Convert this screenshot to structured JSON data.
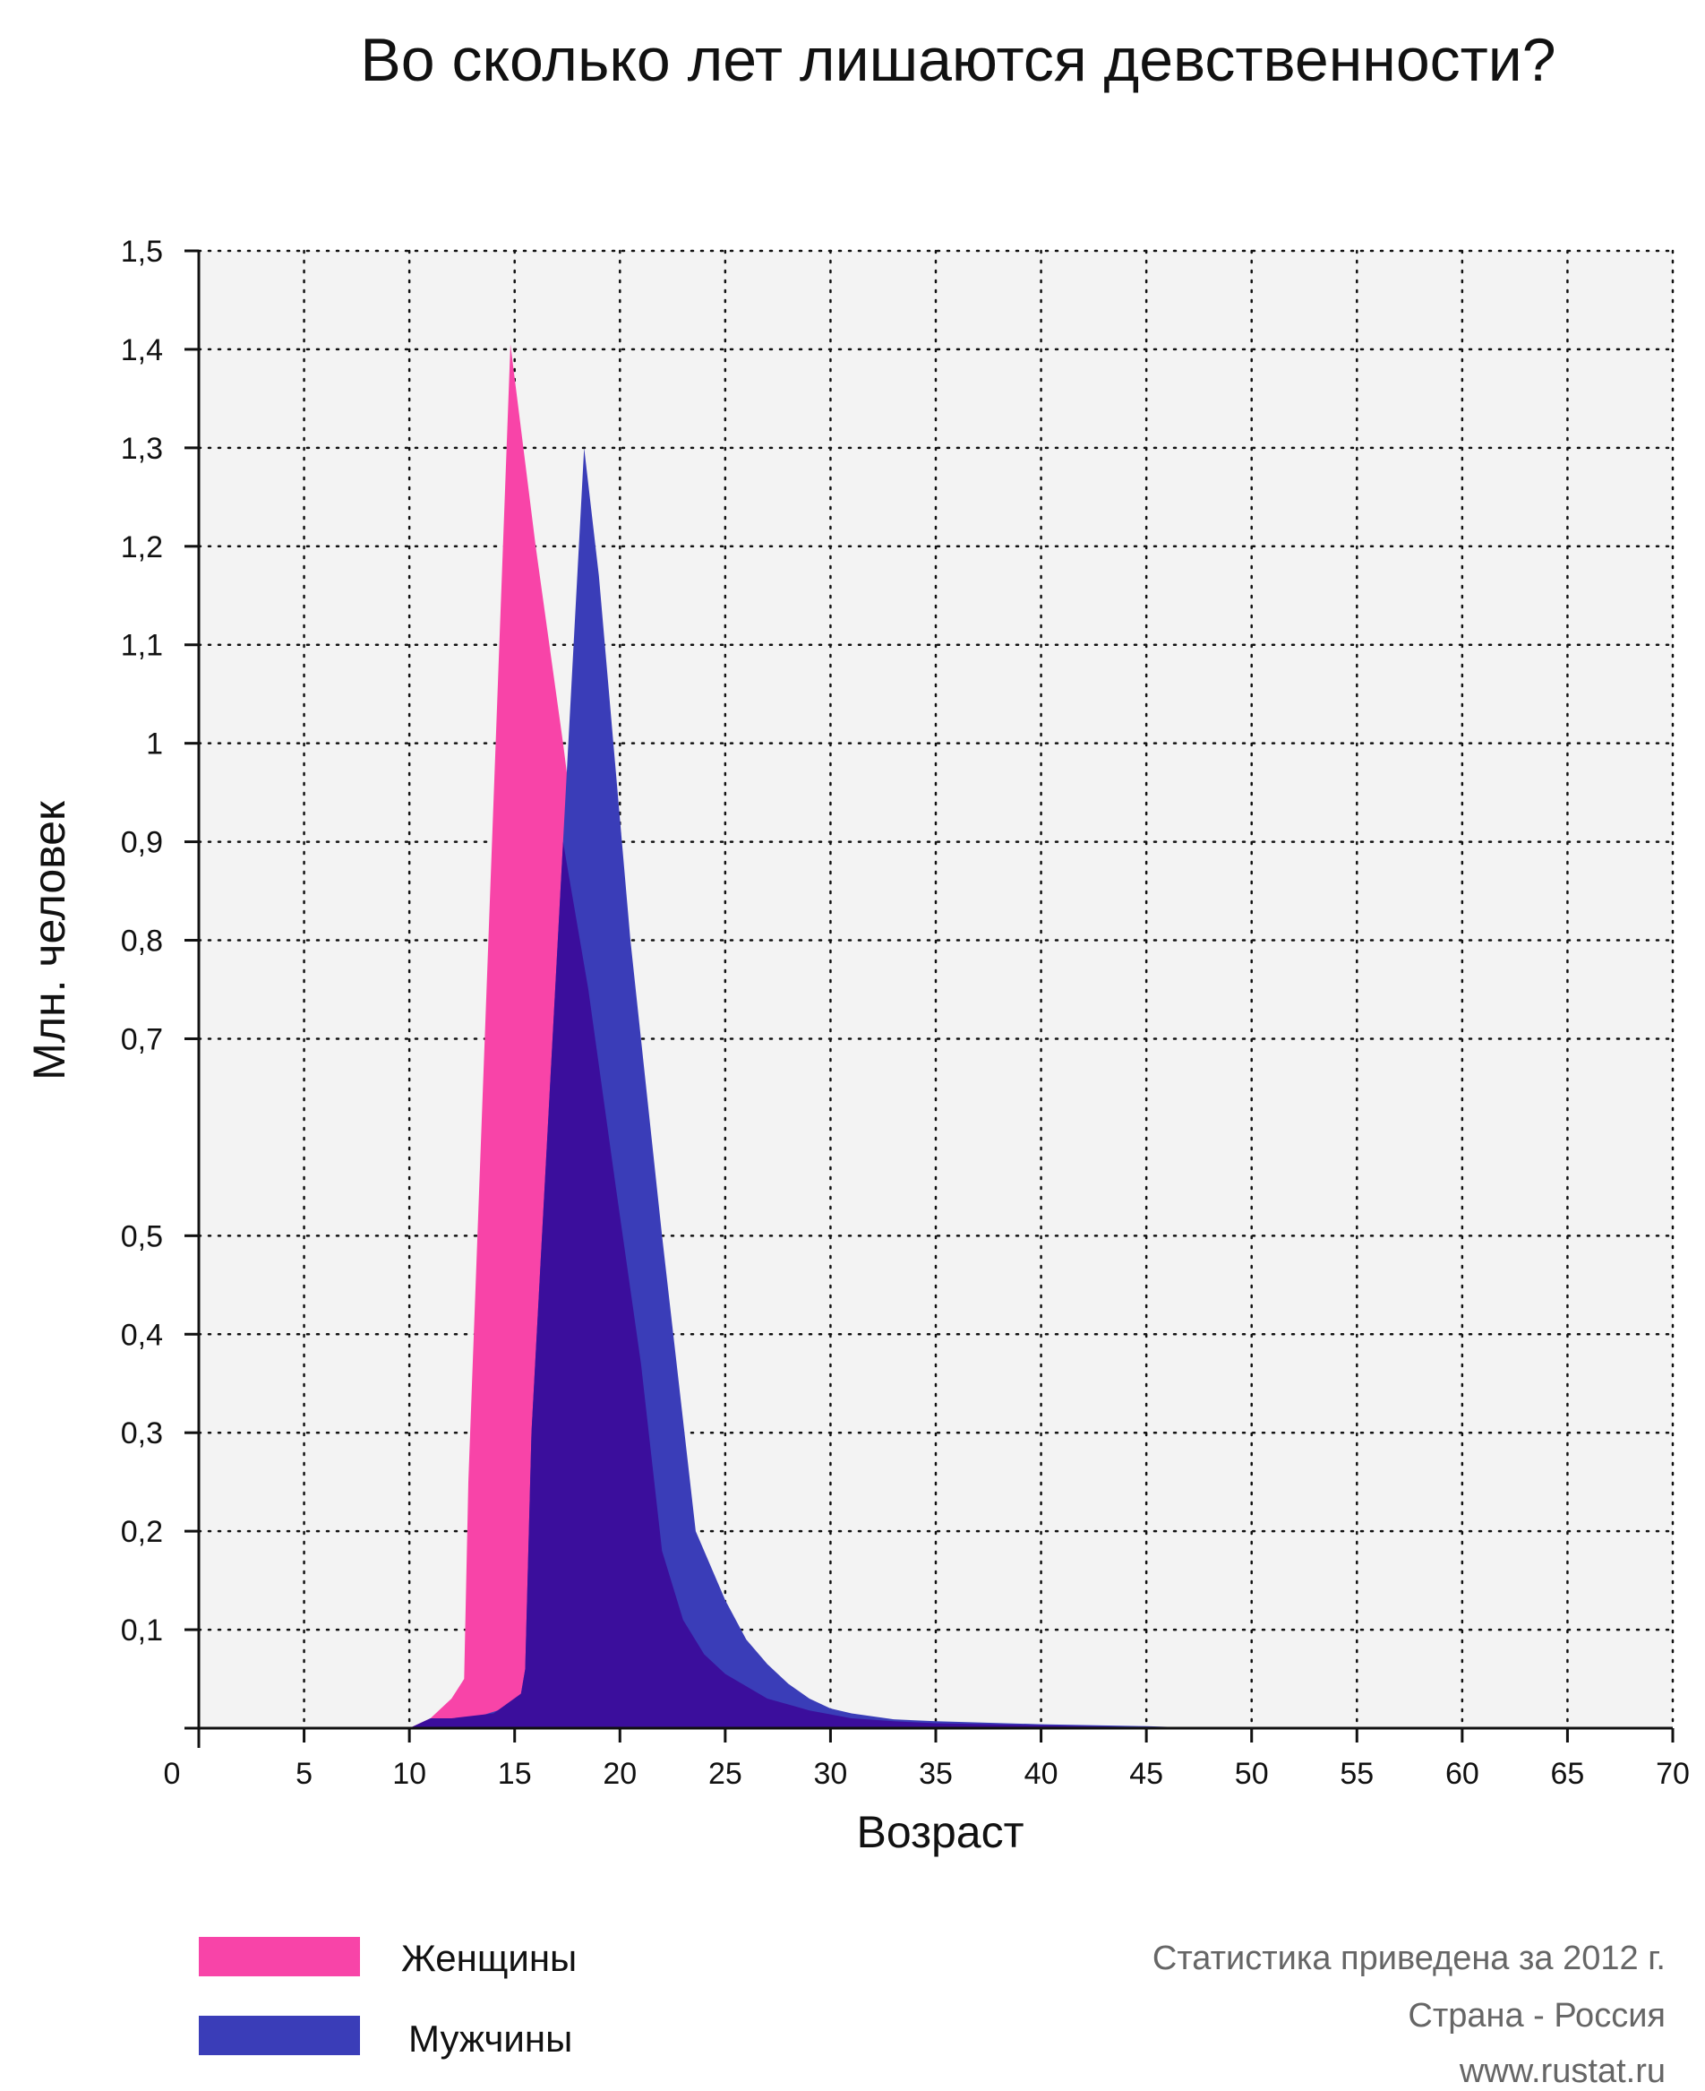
{
  "chart_data": {
    "type": "area",
    "title": "Во сколько лет лишаются девственности?",
    "xlabel": "Возраст",
    "ylabel": "Млн. человек",
    "xlim": [
      0,
      70
    ],
    "ylim": [
      0,
      1.5
    ],
    "x_ticks": [
      "0",
      "5",
      "10",
      "15",
      "20",
      "25",
      "30",
      "35",
      "40",
      "45",
      "50",
      "55",
      "60",
      "65",
      "70"
    ],
    "y_ticks": [
      {
        "value": 0.1,
        "label": "0,1"
      },
      {
        "value": 0.2,
        "label": "0,2"
      },
      {
        "value": 0.3,
        "label": "0,3"
      },
      {
        "value": 0.4,
        "label": "0,4"
      },
      {
        "value": 0.5,
        "label": "0,5"
      },
      {
        "value": 0.7,
        "label": "0,7"
      },
      {
        "value": 0.8,
        "label": "0,8"
      },
      {
        "value": 0.9,
        "label": "0,9"
      },
      {
        "value": 1.0,
        "label": "1"
      },
      {
        "value": 1.1,
        "label": "1,1"
      },
      {
        "value": 1.2,
        "label": "1,2"
      },
      {
        "value": 1.3,
        "label": "1,3"
      },
      {
        "value": 1.4,
        "label": "1,4"
      },
      {
        "value": 1.5,
        "label": "1,5"
      }
    ],
    "grid": true,
    "legend_position": "bottom-left",
    "series": [
      {
        "name": "Женщины",
        "color": "#f844a8",
        "points": [
          [
            10,
            0
          ],
          [
            11,
            0.01
          ],
          [
            12,
            0.03
          ],
          [
            12.6,
            0.05
          ],
          [
            12.8,
            0.25
          ],
          [
            14.8,
            1.405
          ],
          [
            16,
            1.2
          ],
          [
            17.3,
            1.0
          ],
          [
            18.5,
            0.8
          ],
          [
            19.8,
            0.6
          ],
          [
            21,
            0.4
          ],
          [
            22,
            0.2
          ],
          [
            23,
            0.12
          ],
          [
            24,
            0.08
          ],
          [
            25,
            0.055
          ],
          [
            27,
            0.03
          ],
          [
            29,
            0.018
          ],
          [
            31,
            0.01
          ],
          [
            33,
            0.007
          ],
          [
            35,
            0.005
          ],
          [
            40,
            0.003
          ],
          [
            45,
            0.001
          ],
          [
            50,
            0
          ]
        ]
      },
      {
        "name": "Мужчины",
        "color": "#3a3db8",
        "points": [
          [
            10,
            0
          ],
          [
            11.5,
            0.005
          ],
          [
            13,
            0.01
          ],
          [
            14.5,
            0.02
          ],
          [
            15.3,
            0.035
          ],
          [
            15.5,
            0.06
          ],
          [
            15.8,
            0.3
          ],
          [
            18.3,
            1.3
          ],
          [
            19,
            1.17
          ],
          [
            20.5,
            0.8
          ],
          [
            22,
            0.5
          ],
          [
            23.6,
            0.2
          ],
          [
            25,
            0.13
          ],
          [
            26,
            0.09
          ],
          [
            27,
            0.065
          ],
          [
            28,
            0.045
          ],
          [
            29,
            0.03
          ],
          [
            30,
            0.02
          ],
          [
            31,
            0.015
          ],
          [
            33,
            0.009
          ],
          [
            35,
            0.007
          ],
          [
            40,
            0.004
          ],
          [
            45,
            0.002
          ],
          [
            48,
            0
          ]
        ]
      }
    ],
    "overlap_color": "#3b0e9c",
    "overlap_bounds": [
      [
        10,
        0
      ],
      [
        11,
        0.01
      ],
      [
        12,
        0.01
      ],
      [
        14,
        0.015
      ],
      [
        15.3,
        0.035
      ],
      [
        15.5,
        0.06
      ],
      [
        15.8,
        0.3
      ],
      [
        17.3,
        0.9
      ],
      [
        18.5,
        0.75
      ],
      [
        19.8,
        0.55
      ],
      [
        21,
        0.37
      ],
      [
        22,
        0.18
      ],
      [
        23,
        0.11
      ],
      [
        24,
        0.075
      ],
      [
        25,
        0.055
      ],
      [
        27,
        0.03
      ],
      [
        29,
        0.018
      ],
      [
        31,
        0.01
      ],
      [
        33,
        0.007
      ],
      [
        35,
        0.005
      ],
      [
        40,
        0.003
      ],
      [
        45,
        0.001
      ],
      [
        48,
        0
      ]
    ]
  },
  "notes": {
    "line1": "Статистика приведена за 2012 г.",
    "line2": "Страна - Россия",
    "line3": "www.rustat.ru"
  },
  "colors": {
    "plot_background": "#f3f3f3",
    "grid": "#111111",
    "axis": "#111111"
  }
}
